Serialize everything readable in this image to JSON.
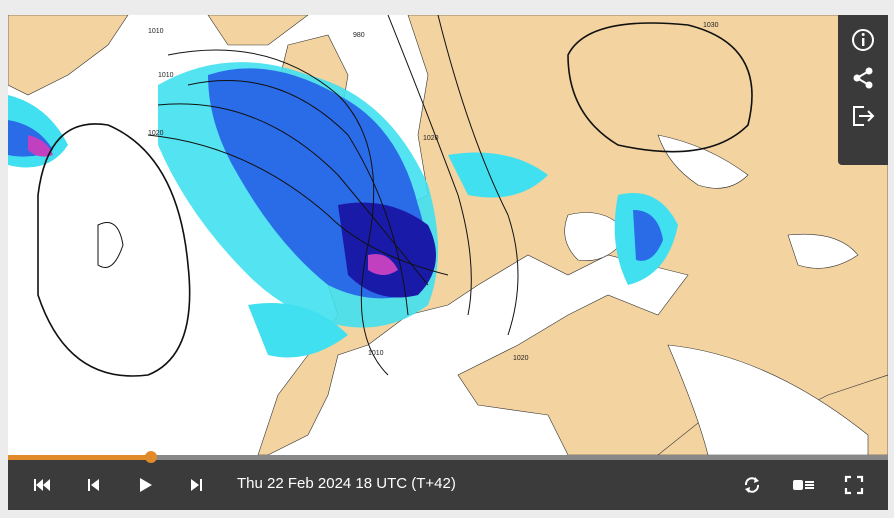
{
  "toolbar": {
    "timestamp": "Thu 22 Feb 2024 18 UTC (T+42)"
  },
  "map": {
    "isobar_labels": [
      "1010",
      "980",
      "1010",
      "1020",
      "1020",
      "1030",
      "1020",
      "1010"
    ]
  }
}
